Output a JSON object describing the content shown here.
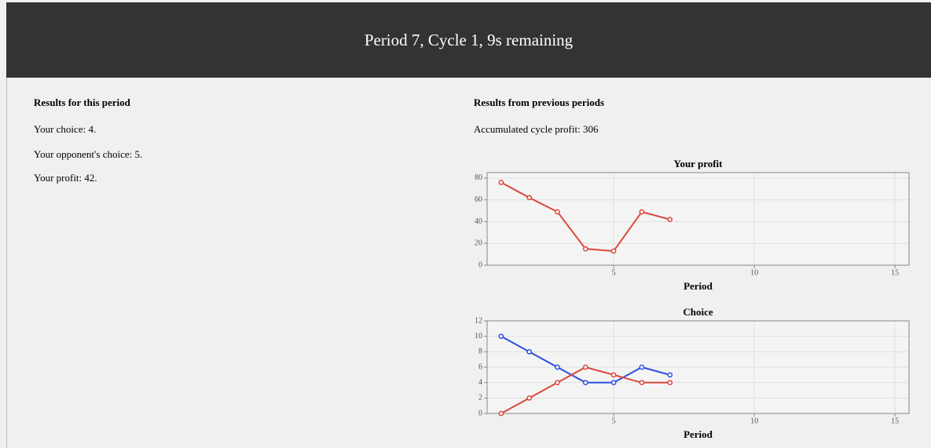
{
  "header": {
    "title": "Period 7, Cycle 1, 9s remaining"
  },
  "current": {
    "heading": "Results for this period",
    "lines": [
      "Your choice: 4.",
      "Your opponent's choice: 5.",
      "Your profit: 42."
    ]
  },
  "previous": {
    "heading": "Results from previous periods",
    "accumulated": "Accumulated cycle profit: 306"
  },
  "chart_data": [
    {
      "type": "line",
      "title": "Your profit",
      "x_label": "Period",
      "x": [
        1,
        2,
        3,
        4,
        5,
        6,
        7
      ],
      "series": [
        {
          "color": "#d9473a",
          "values": [
            76,
            62,
            49,
            15,
            13,
            49,
            42
          ]
        }
      ],
      "xlim": [
        0.5,
        15.5
      ],
      "xticks": [
        5,
        10,
        15
      ],
      "ylim": [
        0,
        85
      ],
      "yticks": [
        0,
        20,
        40,
        60,
        80
      ],
      "grid": true
    },
    {
      "type": "line",
      "title": "Choice",
      "x_label": "Period",
      "x": [
        1,
        2,
        3,
        4,
        5,
        6,
        7
      ],
      "series": [
        {
          "color": "#2b4ee0",
          "values": [
            10,
            8,
            6,
            4,
            4,
            6,
            5
          ]
        },
        {
          "color": "#d9473a",
          "values": [
            0,
            2,
            4,
            6,
            5,
            4,
            4
          ]
        }
      ],
      "xlim": [
        0.5,
        15.5
      ],
      "xticks": [
        5,
        10,
        15
      ],
      "ylim": [
        0,
        12
      ],
      "yticks": [
        0,
        2,
        4,
        6,
        8,
        10,
        12
      ],
      "grid": true
    }
  ]
}
